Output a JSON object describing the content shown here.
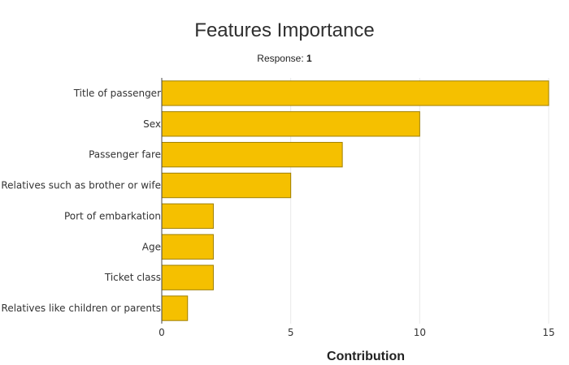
{
  "chart_data": {
    "type": "bar",
    "orientation": "horizontal",
    "title": "Features Importance",
    "subtitle_label": "Response: ",
    "subtitle_value": "1",
    "xlabel": "Contribution",
    "ylabel": "",
    "xlim": [
      0,
      15
    ],
    "xticks": [
      0,
      5,
      10,
      15
    ],
    "grid": true,
    "categories": [
      "Title of passenger",
      "Sex",
      "Passenger fare",
      "Relatives such as brother or wife",
      "Port of embarkation",
      "Age",
      "Ticket class",
      "Relatives like children or parents"
    ],
    "values": [
      15,
      10,
      7,
      5,
      2,
      2,
      2,
      1
    ],
    "bar_color": "#f5c000"
  }
}
